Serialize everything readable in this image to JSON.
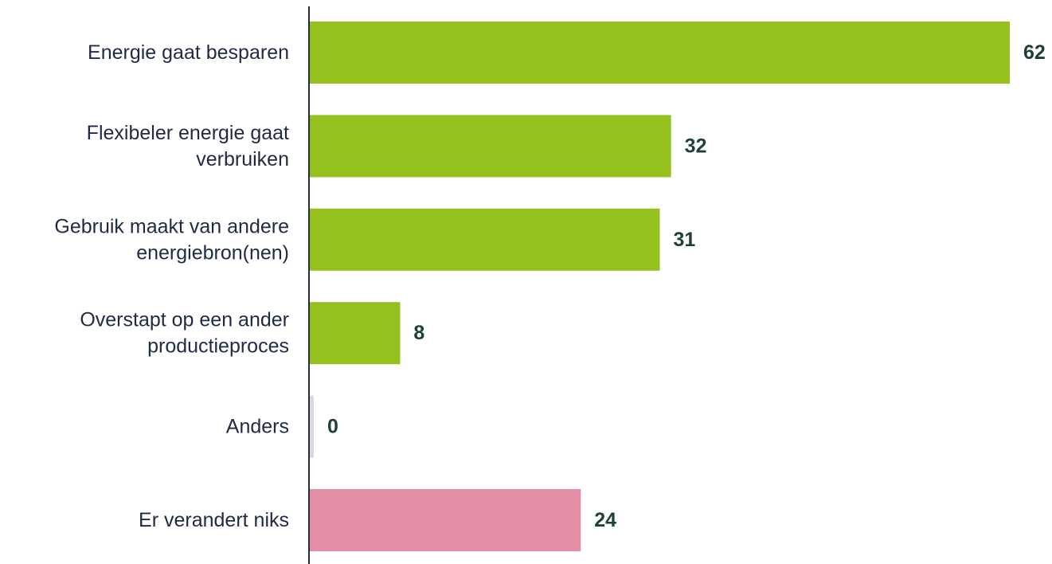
{
  "chart_data": {
    "type": "bar",
    "orientation": "horizontal",
    "categories": [
      [
        "Energie gaat besparen"
      ],
      [
        "Flexibeler energie gaat",
        "verbruiken"
      ],
      [
        "Gebruik maakt van andere",
        "energiebron(nen)"
      ],
      [
        "Overstapt op een ander",
        "productieproces"
      ],
      [
        "Anders"
      ],
      [
        "Er verandert niks"
      ]
    ],
    "values": [
      62,
      32,
      31,
      8,
      0,
      24
    ],
    "bar_colors": [
      "#95c11f",
      "#95c11f",
      "#95c11f",
      "#95c11f",
      "#dadada",
      "#e48ea5"
    ],
    "title": "",
    "xlabel": "",
    "ylabel": "",
    "xlim": [
      0,
      62
    ],
    "grid": false,
    "legend": "none"
  }
}
